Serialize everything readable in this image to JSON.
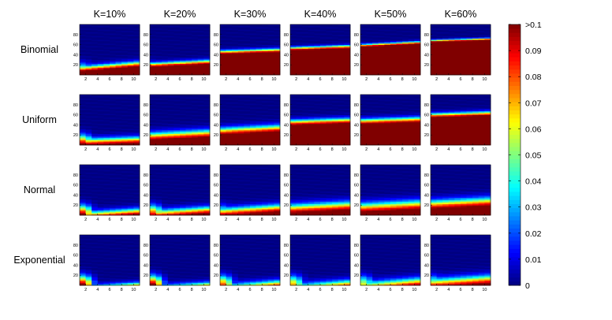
{
  "chart_data": {
    "type": "heatmap",
    "columns": [
      "K=10%",
      "K=20%",
      "K=30%",
      "K=40%",
      "K=50%",
      "K=60%"
    ],
    "rows": [
      "Binomial",
      "Uniform",
      "Normal",
      "Exponential"
    ],
    "x_ticks": [
      "2",
      "4",
      "6",
      "8",
      "10"
    ],
    "y_ticks": [
      "20",
      "40",
      "60",
      "80"
    ],
    "xlim": [
      1,
      11
    ],
    "ylim": [
      0,
      100
    ],
    "colorbar": {
      "min": 0,
      "max": 0.1,
      "ticks": [
        "0",
        "0.01",
        "0.02",
        "0.03",
        "0.04",
        "0.05",
        "0.06",
        "0.07",
        "0.08",
        "0.09",
        ">0.1"
      ],
      "colormap": "jet"
    },
    "panels": [
      {
        "row": "Binomial",
        "column": "K=10%",
        "boundary_y": 18,
        "band_width": 10,
        "corner": 0.1,
        "slope": 0.5
      },
      {
        "row": "Binomial",
        "column": "K=20%",
        "boundary_y": 24,
        "band_width": 8,
        "corner": 0.1,
        "slope": 0.3
      },
      {
        "row": "Binomial",
        "column": "K=30%",
        "boundary_y": 48,
        "band_width": 7,
        "corner": 0,
        "slope": 0.2
      },
      {
        "row": "Binomial",
        "column": "K=40%",
        "boundary_y": 55,
        "band_width": 6,
        "corner": 0,
        "slope": 0.2
      },
      {
        "row": "Binomial",
        "column": "K=50%",
        "boundary_y": 62,
        "band_width": 5,
        "corner": 0,
        "slope": 0.3
      },
      {
        "row": "Binomial",
        "column": "K=60%",
        "boundary_y": 70,
        "band_width": 4,
        "corner": 0,
        "slope": 0.2
      },
      {
        "row": "Uniform",
        "column": "K=10%",
        "boundary_y": 10,
        "band_width": 12,
        "corner": 0.1,
        "slope": 0.2
      },
      {
        "row": "Uniform",
        "column": "K=20%",
        "boundary_y": 22,
        "band_width": 14,
        "corner": 0.08,
        "slope": 0.3
      },
      {
        "row": "Uniform",
        "column": "K=30%",
        "boundary_y": 32,
        "band_width": 13,
        "corner": 0.03,
        "slope": 0.3
      },
      {
        "row": "Uniform",
        "column": "K=40%",
        "boundary_y": 48,
        "band_width": 10,
        "corner": 0,
        "slope": 0.2
      },
      {
        "row": "Uniform",
        "column": "K=50%",
        "boundary_y": 50,
        "band_width": 10,
        "corner": 0,
        "slope": 0.2
      },
      {
        "row": "Uniform",
        "column": "K=60%",
        "boundary_y": 62,
        "band_width": 8,
        "corner": 0,
        "slope": 0.2
      },
      {
        "row": "Normal",
        "column": "K=10%",
        "boundary_y": 5,
        "band_width": 12,
        "corner": 0.1,
        "slope": 0.4
      },
      {
        "row": "Normal",
        "column": "K=20%",
        "boundary_y": 8,
        "band_width": 13,
        "corner": 0.09,
        "slope": 0.4
      },
      {
        "row": "Normal",
        "column": "K=30%",
        "boundary_y": 12,
        "band_width": 14,
        "corner": 0.06,
        "slope": 0.4
      },
      {
        "row": "Normal",
        "column": "K=40%",
        "boundary_y": 18,
        "band_width": 16,
        "corner": 0.04,
        "slope": 0.3
      },
      {
        "row": "Normal",
        "column": "K=50%",
        "boundary_y": 20,
        "band_width": 17,
        "corner": 0.03,
        "slope": 0.3
      },
      {
        "row": "Normal",
        "column": "K=60%",
        "boundary_y": 26,
        "band_width": 16,
        "corner": 0.02,
        "slope": 0.3
      },
      {
        "row": "Exponential",
        "column": "K=10%",
        "boundary_y": -2,
        "band_width": 10,
        "corner": 0.1,
        "slope": 0.4
      },
      {
        "row": "Exponential",
        "column": "K=20%",
        "boundary_y": -2,
        "band_width": 11,
        "corner": 0.1,
        "slope": 0.4
      },
      {
        "row": "Exponential",
        "column": "K=30%",
        "boundary_y": 0,
        "band_width": 13,
        "corner": 0.08,
        "slope": 0.5
      },
      {
        "row": "Exponential",
        "column": "K=40%",
        "boundary_y": 0,
        "band_width": 14,
        "corner": 0.07,
        "slope": 0.5
      },
      {
        "row": "Exponential",
        "column": "K=50%",
        "boundary_y": 4,
        "band_width": 15,
        "corner": 0.06,
        "slope": 0.5
      },
      {
        "row": "Exponential",
        "column": "K=60%",
        "boundary_y": 10,
        "band_width": 16,
        "corner": 0.06,
        "slope": 0.4
      }
    ]
  }
}
